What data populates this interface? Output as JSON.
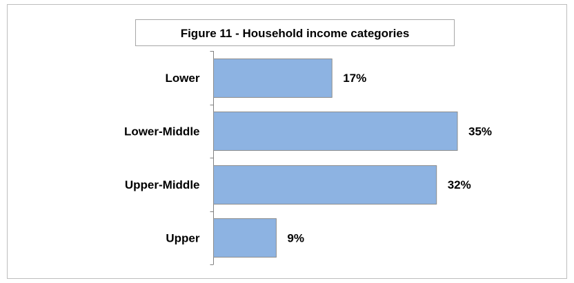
{
  "chart_data": {
    "type": "bar",
    "orientation": "horizontal",
    "title": "Figure 11 - Household income categories",
    "categories": [
      "Lower",
      "Lower-Middle",
      "Upper-Middle",
      "Upper"
    ],
    "values": [
      17,
      35,
      32,
      9
    ],
    "value_labels": [
      "17%",
      "35%",
      "32%",
      "9%"
    ],
    "unit": "%",
    "xlabel": "",
    "ylabel": "",
    "xlim": [
      0,
      35
    ],
    "grid": false,
    "legend": "none",
    "colors": {
      "bar_fill": "#8db3e2",
      "bar_stroke": "#8c8c8c",
      "axis": "#808080"
    }
  }
}
